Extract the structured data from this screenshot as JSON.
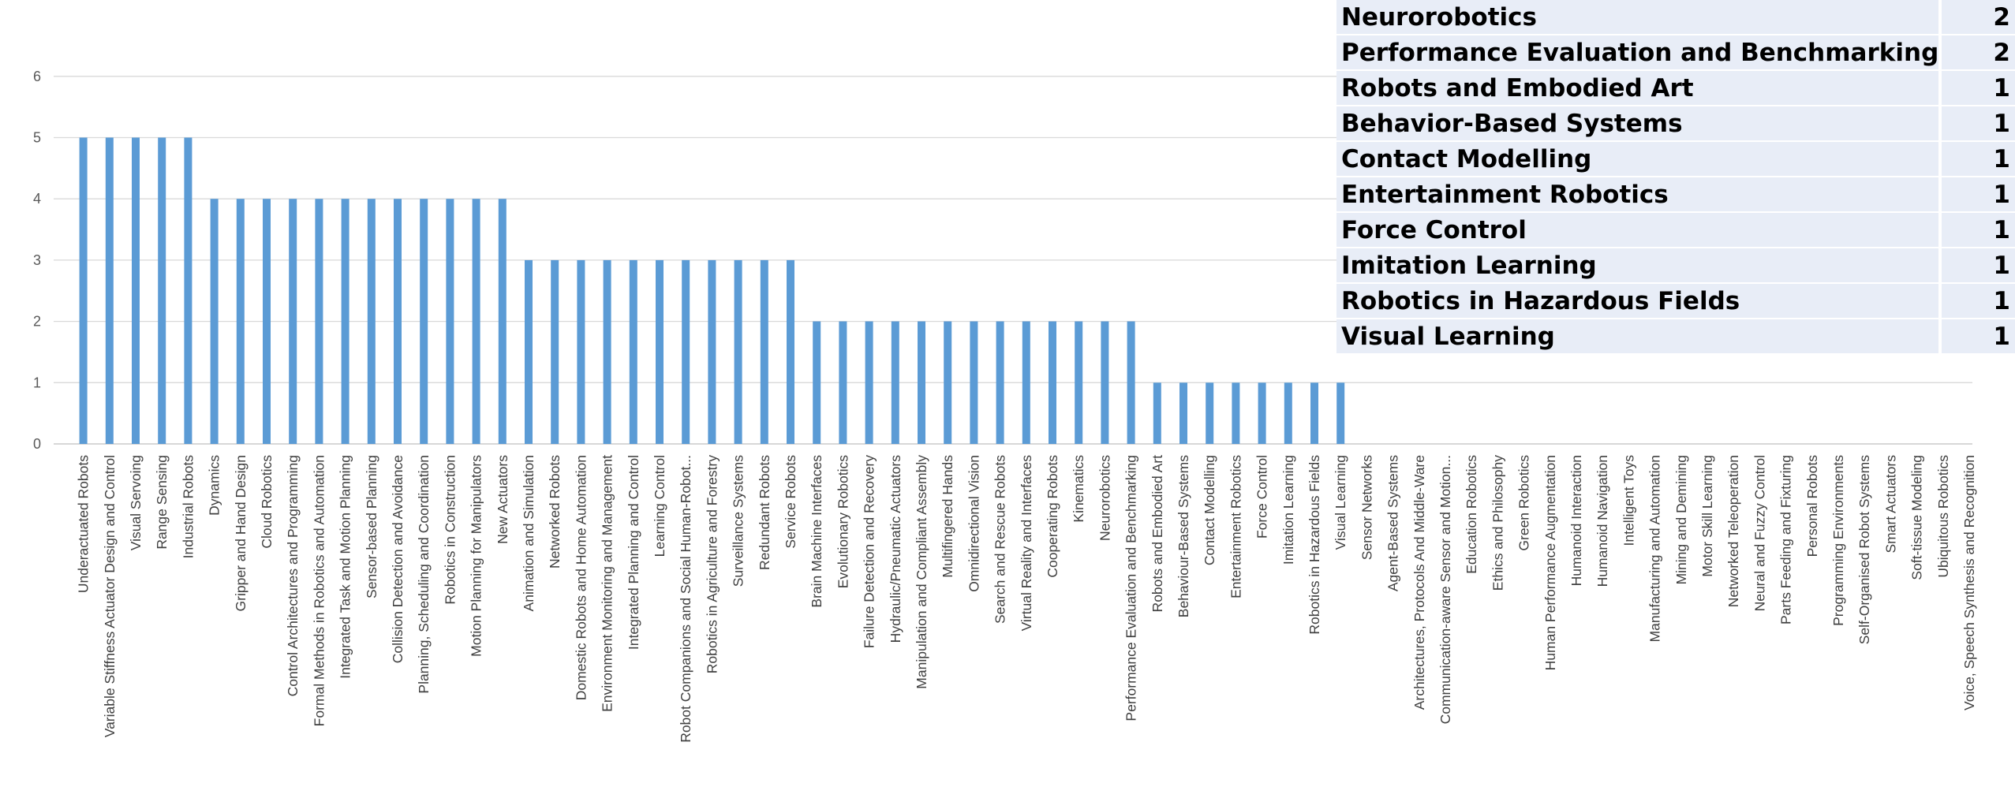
{
  "chart_data": {
    "type": "bar",
    "title": "",
    "xlabel": "",
    "ylabel": "",
    "ylim": [
      0,
      6
    ],
    "yticks": [
      0,
      1,
      2,
      3,
      4,
      5,
      6
    ],
    "grid": true,
    "bar_color": "#5b9bd5",
    "categories": [
      "Underactuated Robots",
      "Variable Stiffness Actuator Design and Control",
      "Visual Servoing",
      "Range Sensing",
      "Industrial Robots",
      "Dynamics",
      "Gripper and Hand Design",
      "Cloud Robotics",
      "Control Architectures and Programming",
      "Formal Methods in Robotics and Automation",
      "Integrated Task and Motion Planning",
      "Sensor-based Planning",
      "Collision Detection and Avoidance",
      "Planning, Scheduling and Coordination",
      "Robotics in Construction",
      "Motion Planning for Manipulators",
      "New Actuators",
      "Animation and Simulation",
      "Networked Robots",
      "Domestic Robots and Home Automation",
      "Environment Monitoring and Management",
      "Integrated Planning and Control",
      "Learning Control",
      "Robot Companions and Social Human-Robot...",
      "Robotics in Agriculture and Forestry",
      "Surveillance Systems",
      "Redundant Robots",
      "Service Robots",
      "Brain Machine Interfaces",
      "Evolutionary Robotics",
      "Failure Detection and Recovery",
      "Hydraulic/Pneumatic Actuators",
      "Manipulation and Compliant Assembly",
      "Multifingered Hands",
      "Omnidirectional Vision",
      "Search and Rescue Robots",
      "Virtual Reality and Interfaces",
      "Cooperating Robots",
      "Kinematics",
      "Neurorobotics",
      "Performance Evaluation and Benchmarking",
      "Robots and Embodied Art",
      "Behaviour-Based Systems",
      "Contact Modelling",
      "Entertainment Robotics",
      "Force Control",
      "Imitation Learning",
      "Robotics in Hazardous Fields",
      "Visual Learning",
      "Sensor Networks",
      "Agent-Based Systems",
      "Architectures, Protocols And Middle-Ware",
      "Communication-aware Sensor and Motion...",
      "Education Robotics",
      "Ethics and Philosophy",
      "Green Robotics",
      "Human Performance Augmentation",
      "Humanoid Interaction",
      "Humanoid Navigation",
      "Intelligent Toys",
      "Manufacturing and Automation",
      "Mining and Demining",
      "Motor Skill Learning",
      "Networked Teleoperation",
      "Neural and Fuzzy Control",
      "Parts Feeding and Fixturing",
      "Personal Robots",
      "Programming Environments",
      "Self-Organised Robot Systems",
      "Smart Actuators",
      "Soft-tissue Modeling",
      "Ubiquitous Robotics",
      "Voice, Speech Synthesis and Recognition"
    ],
    "values": [
      5,
      5,
      5,
      5,
      5,
      4,
      4,
      4,
      4,
      4,
      4,
      4,
      4,
      4,
      4,
      4,
      4,
      3,
      3,
      3,
      3,
      3,
      3,
      3,
      3,
      3,
      3,
      3,
      2,
      2,
      2,
      2,
      2,
      2,
      2,
      2,
      2,
      2,
      2,
      2,
      2,
      1,
      1,
      1,
      1,
      1,
      1,
      1,
      1,
      0,
      0,
      0,
      0,
      0,
      0,
      0,
      0,
      0,
      0,
      0,
      0,
      0,
      0,
      0,
      0,
      0,
      0,
      0,
      0,
      0,
      0,
      0,
      0
    ]
  },
  "table": {
    "rows": [
      {
        "name": "Neurorobotics",
        "count": "2"
      },
      {
        "name": "Performance Evaluation and Benchmarking",
        "count": "2"
      },
      {
        "name": "Robots and Embodied Art",
        "count": "1"
      },
      {
        "name": "Behavior-Based Systems",
        "count": "1"
      },
      {
        "name": "Contact Modelling",
        "count": "1"
      },
      {
        "name": "Entertainment Robotics",
        "count": "1"
      },
      {
        "name": "Force Control",
        "count": "1"
      },
      {
        "name": "Imitation Learning",
        "count": "1"
      },
      {
        "name": "Robotics in Hazardous Fields",
        "count": "1"
      },
      {
        "name": "Visual Learning",
        "count": "1"
      }
    ]
  }
}
